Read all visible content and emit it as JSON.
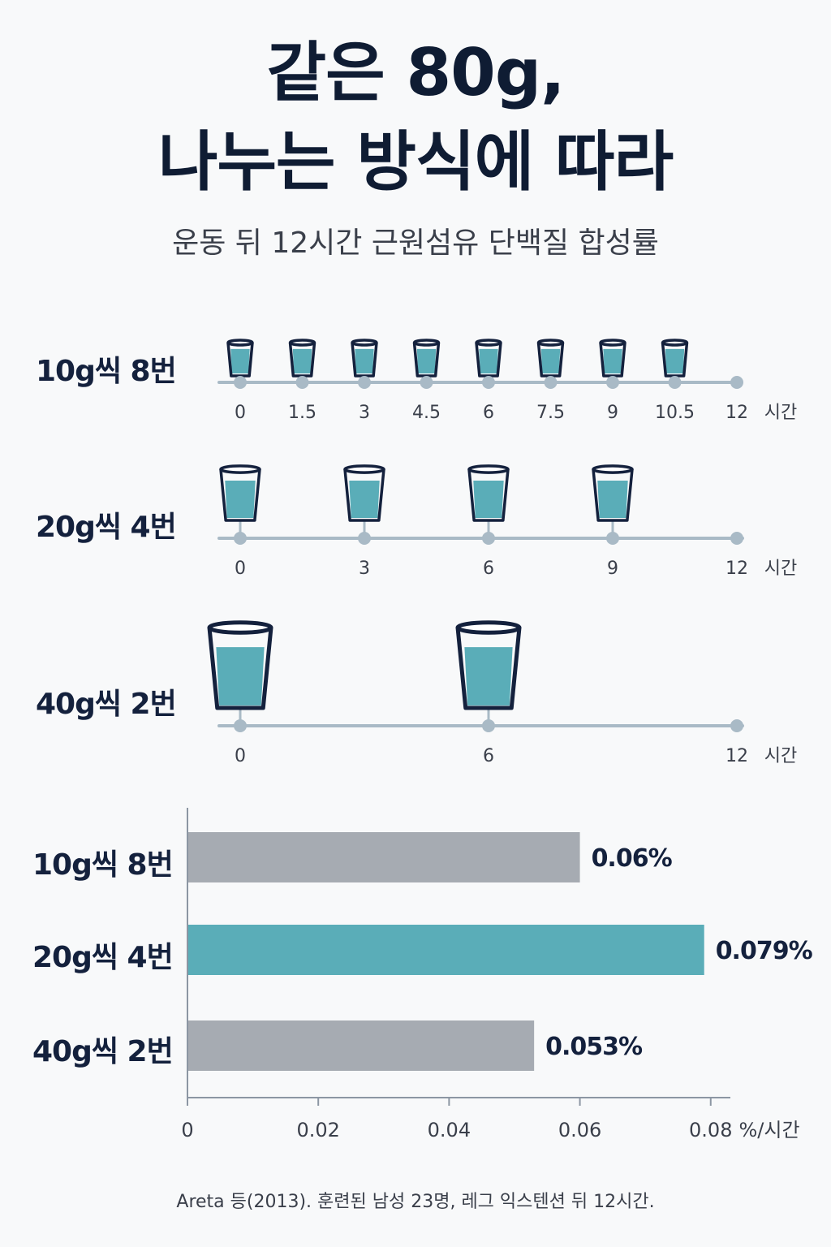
{
  "header": {
    "title_line1": "같은 80g,",
    "title_line2": "나누는 방식에 따라",
    "subtitle": "운동 뒤 12시간 근원섬유 단백질 합성률"
  },
  "schedules": [
    {
      "label": "10g씩 8번",
      "times": [
        0,
        1.5,
        3,
        4.5,
        6,
        7.5,
        9,
        10.5
      ],
      "ticks": [
        "0",
        "1.5",
        "3",
        "4.5",
        "6",
        "7.5",
        "9",
        "10.5",
        "12"
      ],
      "unit": "시간"
    },
    {
      "label": "20g씩 4번",
      "times": [
        0,
        3,
        6,
        9
      ],
      "ticks": [
        "0",
        "3",
        "6",
        "9",
        "12"
      ],
      "unit": "시간"
    },
    {
      "label": "40g씩 2번",
      "times": [
        0,
        6
      ],
      "ticks": [
        "0",
        "6",
        "12"
      ],
      "unit": "시간"
    }
  ],
  "chart_data": {
    "type": "bar",
    "orientation": "horizontal",
    "categories": [
      "10g씩 8번",
      "20g씩 4번",
      "40g씩 2번"
    ],
    "values": [
      0.06,
      0.079,
      0.053
    ],
    "value_labels": [
      "0.06%",
      "0.079%",
      "0.053%"
    ],
    "highlight_index": 1,
    "xlim": [
      0,
      0.084
    ],
    "xticks": [
      "0",
      "0.02",
      "0.04",
      "0.06",
      "0.08"
    ],
    "xunit": "%/시간",
    "colors": {
      "default": "#a6abb2",
      "highlight": "#5aadb8"
    }
  },
  "colors": {
    "water": "#5aadb8",
    "timeline": "#a9bac6",
    "outline": "#14213d"
  },
  "source": "Areta 등(2013). 훈련된 남성 23명, 레그 익스텐션 뒤 12시간."
}
